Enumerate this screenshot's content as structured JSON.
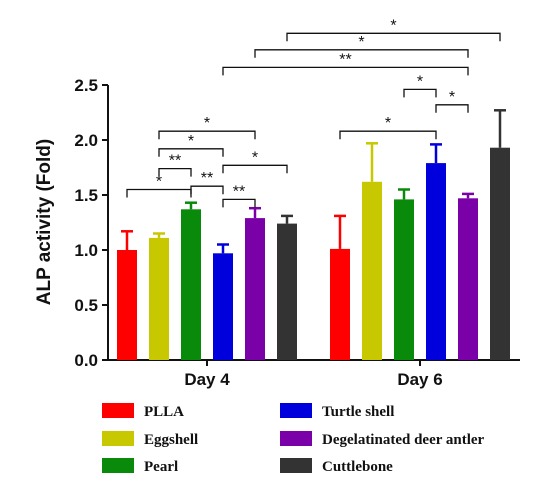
{
  "chart_data": {
    "type": "bar",
    "title": "",
    "xlabel": "",
    "ylabel": "ALP activity (Fold)",
    "ylim": [
      0,
      2.5
    ],
    "yticks": [
      "0.0",
      "0.5",
      "1.0",
      "1.5",
      "2.0",
      "2.5"
    ],
    "categories": [
      "Day 4",
      "Day 6"
    ],
    "grid": false,
    "legend_position": "bottom",
    "series": [
      {
        "name": "PLLA",
        "color": "#ff0000",
        "values": [
          1.0,
          1.01
        ],
        "errors": [
          0.17,
          0.3
        ]
      },
      {
        "name": "Eggshell",
        "color": "#c8c800",
        "values": [
          1.11,
          1.62
        ],
        "errors": [
          0.04,
          0.35
        ]
      },
      {
        "name": "Pearl",
        "color": "#0a8a0a",
        "values": [
          1.37,
          1.46
        ],
        "errors": [
          0.06,
          0.09
        ]
      },
      {
        "name": "Turtle shell",
        "color": "#0000dd",
        "values": [
          0.97,
          1.79
        ],
        "errors": [
          0.08,
          0.17
        ]
      },
      {
        "name": "Degelatinated deer antler",
        "color": "#7a00a8",
        "values": [
          1.29,
          1.47
        ],
        "errors": [
          0.09,
          0.04
        ]
      },
      {
        "name": "Cuttlebone",
        "color": "#333333",
        "values": [
          1.24,
          1.93
        ],
        "errors": [
          0.07,
          0.34
        ]
      }
    ],
    "significance": [
      {
        "from": [
          0,
          0
        ],
        "to": [
          0,
          2
        ],
        "y": 1.55,
        "label": "*"
      },
      {
        "from": [
          0,
          1
        ],
        "to": [
          0,
          2
        ],
        "y": 1.74,
        "label": "**"
      },
      {
        "from": [
          0,
          1
        ],
        "to": [
          0,
          3
        ],
        "y": 1.92,
        "label": "*"
      },
      {
        "from": [
          0,
          1
        ],
        "to": [
          0,
          4
        ],
        "y": 2.08,
        "label": "*"
      },
      {
        "from": [
          0,
          2
        ],
        "to": [
          0,
          3
        ],
        "y": 1.58,
        "label": "**"
      },
      {
        "from": [
          0,
          3
        ],
        "to": [
          0,
          5
        ],
        "y": 1.77,
        "label": "*"
      },
      {
        "from": [
          0,
          3
        ],
        "to": [
          0,
          4
        ],
        "y": 1.46,
        "label": "**"
      },
      {
        "from": [
          1,
          0
        ],
        "to": [
          1,
          3
        ],
        "y": 2.08,
        "label": "*"
      },
      {
        "from": [
          1,
          3
        ],
        "to": [
          1,
          4
        ],
        "y": 2.32,
        "label": "*"
      },
      {
        "from": [
          1,
          2
        ],
        "to": [
          1,
          3
        ],
        "y": 2.46,
        "label": "*"
      },
      {
        "from": [
          0,
          3
        ],
        "to": [
          1,
          4
        ],
        "y": 2.66,
        "label": "**"
      },
      {
        "from": [
          0,
          4
        ],
        "to": [
          1,
          4
        ],
        "y": 2.82,
        "label": "*"
      },
      {
        "from": [
          0,
          5
        ],
        "to": [
          1,
          5
        ],
        "y": 2.97,
        "label": "*"
      }
    ]
  }
}
